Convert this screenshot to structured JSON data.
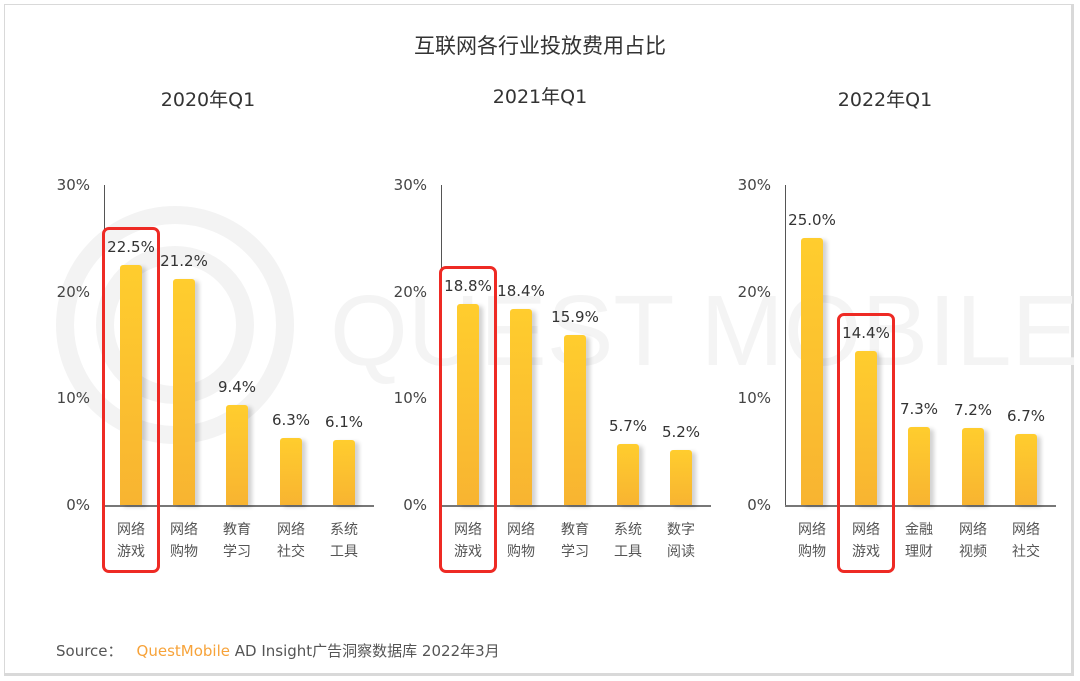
{
  "title": "互联网各行业投放费用占比",
  "colors": {
    "bar_top": "#ffcd2e",
    "bar_bottom": "#f8b431",
    "highlight": "#ee2a24",
    "brand": "#f7a33a"
  },
  "watermark": "QUEST MOBILE",
  "y_ticks": [
    "30%",
    "20%",
    "10%",
    "0%"
  ],
  "charts": [
    {
      "subtitle": "2020年Q1",
      "bars": [
        {
          "label_1": "网络",
          "label_2": "游戏",
          "value": "22.5%",
          "highlight": true
        },
        {
          "label_1": "网络",
          "label_2": "购物",
          "value": "21.2%"
        },
        {
          "label_1": "教育",
          "label_2": "学习",
          "value": "9.4%"
        },
        {
          "label_1": "网络",
          "label_2": "社交",
          "value": "6.3%"
        },
        {
          "label_1": "系统",
          "label_2": "工具",
          "value": "6.1%"
        }
      ]
    },
    {
      "subtitle": "2021年Q1",
      "bars": [
        {
          "label_1": "网络",
          "label_2": "游戏",
          "value": "18.8%",
          "highlight": true
        },
        {
          "label_1": "网络",
          "label_2": "购物",
          "value": "18.4%"
        },
        {
          "label_1": "教育",
          "label_2": "学习",
          "value": "15.9%"
        },
        {
          "label_1": "系统",
          "label_2": "工具",
          "value": "5.7%"
        },
        {
          "label_1": "数字",
          "label_2": "阅读",
          "value": "5.2%"
        }
      ]
    },
    {
      "subtitle": "2022年Q1",
      "bars": [
        {
          "label_1": "网络",
          "label_2": "购物",
          "value": "25.0%"
        },
        {
          "label_1": "网络",
          "label_2": "游戏",
          "value": "14.4%",
          "highlight": true
        },
        {
          "label_1": "金融",
          "label_2": "理财",
          "value": "7.3%"
        },
        {
          "label_1": "网络",
          "label_2": "视频",
          "value": "7.2%"
        },
        {
          "label_1": "网络",
          "label_2": "社交",
          "value": "6.7%"
        }
      ]
    }
  ],
  "source": {
    "label": "Source：",
    "brand": "QuestMobile",
    "text": "AD Insight广告洞察数据库 2022年3月"
  },
  "chart_data": [
    {
      "type": "bar",
      "title": "互联网各行业投放费用占比 — 2020年Q1",
      "categories": [
        "网络游戏",
        "网络购物",
        "教育学习",
        "网络社交",
        "系统工具"
      ],
      "values": [
        22.5,
        21.2,
        9.4,
        6.3,
        6.1
      ],
      "ylabel": "",
      "xlabel": "",
      "ylim": [
        0,
        30
      ],
      "yticks": [
        "0%",
        "10%",
        "20%",
        "30%"
      ],
      "highlighted": "网络游戏",
      "grid": false
    },
    {
      "type": "bar",
      "title": "互联网各行业投放费用占比 — 2021年Q1",
      "categories": [
        "网络游戏",
        "网络购物",
        "教育学习",
        "系统工具",
        "数字阅读"
      ],
      "values": [
        18.8,
        18.4,
        15.9,
        5.7,
        5.2
      ],
      "ylabel": "",
      "xlabel": "",
      "ylim": [
        0,
        30
      ],
      "yticks": [
        "0%",
        "10%",
        "20%",
        "30%"
      ],
      "highlighted": "网络游戏",
      "grid": false
    },
    {
      "type": "bar",
      "title": "互联网各行业投放费用占比 — 2022年Q1",
      "categories": [
        "网络购物",
        "网络游戏",
        "金融理财",
        "网络视频",
        "网络社交"
      ],
      "values": [
        25.0,
        14.4,
        7.3,
        7.2,
        6.7
      ],
      "ylabel": "",
      "xlabel": "",
      "ylim": [
        0,
        30
      ],
      "yticks": [
        "0%",
        "10%",
        "20%",
        "30%"
      ],
      "highlighted": "网络游戏",
      "grid": false
    }
  ]
}
